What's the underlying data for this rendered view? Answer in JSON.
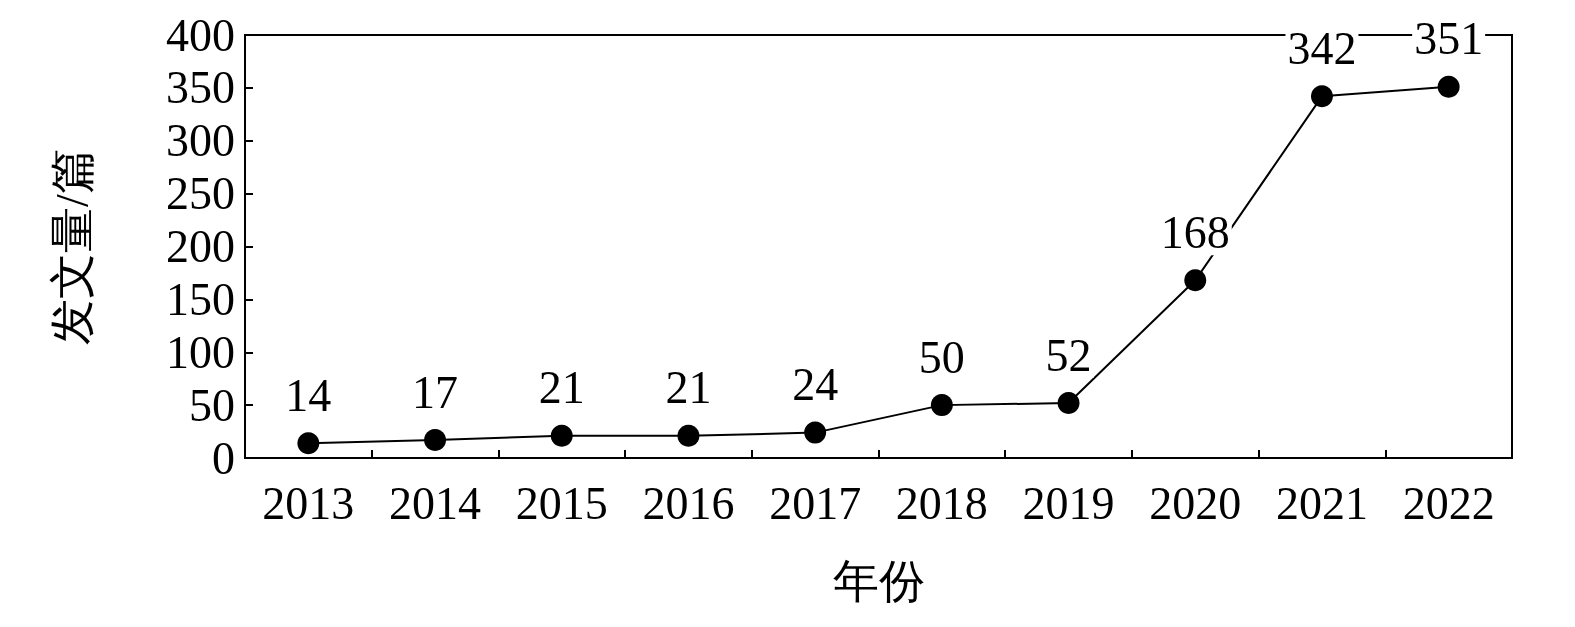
{
  "chart_data": {
    "type": "line",
    "xlabel": "年份",
    "ylabel": "发文量/篇",
    "categories": [
      "2013",
      "2014",
      "2015",
      "2016",
      "2017",
      "2018",
      "2019",
      "2020",
      "2021",
      "2022"
    ],
    "series": [
      {
        "color": "#000000",
        "values": [
          14,
          17,
          21,
          21,
          24,
          50,
          52,
          168,
          342,
          351
        ]
      }
    ],
    "ylim": [
      0,
      400
    ],
    "yticks": [
      0,
      50,
      100,
      150,
      200,
      250,
      300,
      350,
      400
    ],
    "data_labels": true,
    "marker": "circle",
    "line_style": "solid",
    "grid": false
  }
}
